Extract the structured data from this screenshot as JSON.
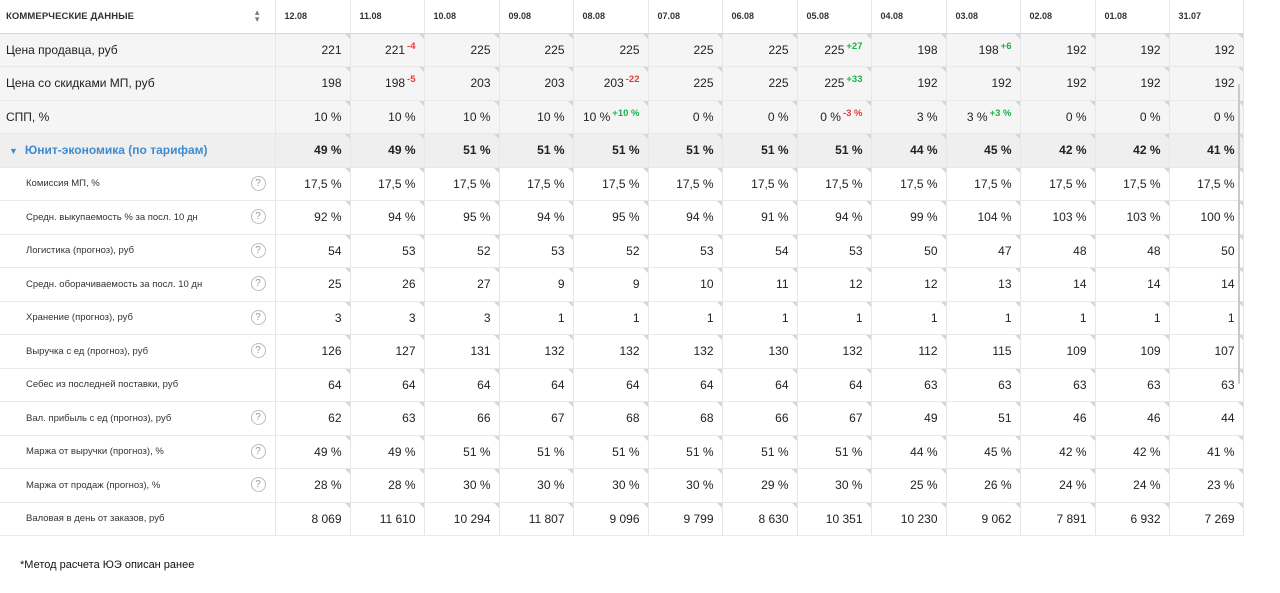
{
  "header": {
    "title": "КОММЕРЧЕСКИЕ ДАННЫЕ",
    "sort_icon": "sort-icon"
  },
  "dates": [
    "12.08",
    "11.08",
    "10.08",
    "09.08",
    "08.08",
    "07.08",
    "06.08",
    "05.08",
    "04.08",
    "03.08",
    "02.08",
    "01.08",
    "31.07"
  ],
  "rows": [
    {
      "type": "top",
      "label": "Цена продавца, руб",
      "help": false,
      "values": [
        {
          "v": "221"
        },
        {
          "v": "221",
          "d": "-4",
          "dir": "down"
        },
        {
          "v": "225"
        },
        {
          "v": "225"
        },
        {
          "v": "225"
        },
        {
          "v": "225"
        },
        {
          "v": "225"
        },
        {
          "v": "225",
          "d": "+27",
          "dir": "up"
        },
        {
          "v": "198"
        },
        {
          "v": "198",
          "d": "+6",
          "dir": "up"
        },
        {
          "v": "192"
        },
        {
          "v": "192"
        },
        {
          "v": "192"
        }
      ]
    },
    {
      "type": "top",
      "label": "Цена со скидками МП, руб",
      "help": false,
      "values": [
        {
          "v": "198"
        },
        {
          "v": "198",
          "d": "-5",
          "dir": "down"
        },
        {
          "v": "203"
        },
        {
          "v": "203"
        },
        {
          "v": "203",
          "d": "-22",
          "dir": "down"
        },
        {
          "v": "225"
        },
        {
          "v": "225"
        },
        {
          "v": "225",
          "d": "+33",
          "dir": "up"
        },
        {
          "v": "192"
        },
        {
          "v": "192"
        },
        {
          "v": "192"
        },
        {
          "v": "192"
        },
        {
          "v": "192"
        }
      ]
    },
    {
      "type": "top",
      "label": "СПП, %",
      "help": false,
      "values": [
        {
          "v": "10 %"
        },
        {
          "v": "10 %"
        },
        {
          "v": "10 %"
        },
        {
          "v": "10 %"
        },
        {
          "v": "10 %",
          "d": "+10 %",
          "dir": "up"
        },
        {
          "v": "0 %"
        },
        {
          "v": "0 %"
        },
        {
          "v": "0 %",
          "d": "-3 %",
          "dir": "down"
        },
        {
          "v": "3 %"
        },
        {
          "v": "3 %",
          "d": "+3 %",
          "dir": "up"
        },
        {
          "v": "0 %"
        },
        {
          "v": "0 %"
        },
        {
          "v": "0 %"
        }
      ]
    },
    {
      "type": "grp",
      "label": "Юнит-экономика (по тарифам)",
      "help": false,
      "values": [
        {
          "v": "49 %"
        },
        {
          "v": "49 %"
        },
        {
          "v": "51 %"
        },
        {
          "v": "51 %"
        },
        {
          "v": "51 %"
        },
        {
          "v": "51 %"
        },
        {
          "v": "51 %"
        },
        {
          "v": "51 %"
        },
        {
          "v": "44 %"
        },
        {
          "v": "45 %"
        },
        {
          "v": "42 %"
        },
        {
          "v": "42 %"
        },
        {
          "v": "41 %"
        }
      ]
    },
    {
      "type": "sub",
      "label": "Комиссия МП, %",
      "help": true,
      "values": [
        {
          "v": "17,5 %"
        },
        {
          "v": "17,5 %"
        },
        {
          "v": "17,5 %"
        },
        {
          "v": "17,5 %"
        },
        {
          "v": "17,5 %"
        },
        {
          "v": "17,5 %"
        },
        {
          "v": "17,5 %"
        },
        {
          "v": "17,5 %"
        },
        {
          "v": "17,5 %"
        },
        {
          "v": "17,5 %"
        },
        {
          "v": "17,5 %"
        },
        {
          "v": "17,5 %"
        },
        {
          "v": "17,5 %"
        }
      ]
    },
    {
      "type": "sub",
      "label": "Средн. выкупаемость % за посл. 10 дн",
      "help": true,
      "values": [
        {
          "v": "92 %"
        },
        {
          "v": "94 %"
        },
        {
          "v": "95 %"
        },
        {
          "v": "94 %"
        },
        {
          "v": "95 %"
        },
        {
          "v": "94 %"
        },
        {
          "v": "91 %"
        },
        {
          "v": "94 %"
        },
        {
          "v": "99 %"
        },
        {
          "v": "104 %"
        },
        {
          "v": "103 %"
        },
        {
          "v": "103 %"
        },
        {
          "v": "100 %"
        }
      ]
    },
    {
      "type": "sub",
      "label": "Логистика (прогноз), руб",
      "help": true,
      "values": [
        {
          "v": "54"
        },
        {
          "v": "53"
        },
        {
          "v": "52"
        },
        {
          "v": "53"
        },
        {
          "v": "52"
        },
        {
          "v": "53"
        },
        {
          "v": "54"
        },
        {
          "v": "53"
        },
        {
          "v": "50"
        },
        {
          "v": "47"
        },
        {
          "v": "48"
        },
        {
          "v": "48"
        },
        {
          "v": "50"
        }
      ]
    },
    {
      "type": "sub",
      "label": "Средн. оборачиваемость за посл. 10 дн",
      "help": true,
      "values": [
        {
          "v": "25"
        },
        {
          "v": "26"
        },
        {
          "v": "27"
        },
        {
          "v": "9"
        },
        {
          "v": "9"
        },
        {
          "v": "10"
        },
        {
          "v": "11"
        },
        {
          "v": "12"
        },
        {
          "v": "12"
        },
        {
          "v": "13"
        },
        {
          "v": "14"
        },
        {
          "v": "14"
        },
        {
          "v": "14"
        }
      ]
    },
    {
      "type": "sub",
      "label": "Хранение (прогноз), руб",
      "help": true,
      "values": [
        {
          "v": "3"
        },
        {
          "v": "3"
        },
        {
          "v": "3"
        },
        {
          "v": "1"
        },
        {
          "v": "1"
        },
        {
          "v": "1"
        },
        {
          "v": "1"
        },
        {
          "v": "1"
        },
        {
          "v": "1"
        },
        {
          "v": "1"
        },
        {
          "v": "1"
        },
        {
          "v": "1"
        },
        {
          "v": "1"
        }
      ]
    },
    {
      "type": "sub",
      "label": "Выручка с ед (прогноз), руб",
      "help": true,
      "values": [
        {
          "v": "126"
        },
        {
          "v": "127"
        },
        {
          "v": "131"
        },
        {
          "v": "132"
        },
        {
          "v": "132"
        },
        {
          "v": "132"
        },
        {
          "v": "130"
        },
        {
          "v": "132"
        },
        {
          "v": "112"
        },
        {
          "v": "115"
        },
        {
          "v": "109"
        },
        {
          "v": "109"
        },
        {
          "v": "107"
        }
      ]
    },
    {
      "type": "sub",
      "label": "Себес из последней поставки, руб",
      "help": false,
      "values": [
        {
          "v": "64"
        },
        {
          "v": "64"
        },
        {
          "v": "64"
        },
        {
          "v": "64"
        },
        {
          "v": "64"
        },
        {
          "v": "64"
        },
        {
          "v": "64"
        },
        {
          "v": "64"
        },
        {
          "v": "63"
        },
        {
          "v": "63"
        },
        {
          "v": "63"
        },
        {
          "v": "63"
        },
        {
          "v": "63"
        }
      ]
    },
    {
      "type": "sub",
      "label": "Вал. прибыль с ед (прогноз), руб",
      "help": true,
      "values": [
        {
          "v": "62"
        },
        {
          "v": "63"
        },
        {
          "v": "66"
        },
        {
          "v": "67"
        },
        {
          "v": "68"
        },
        {
          "v": "68"
        },
        {
          "v": "66"
        },
        {
          "v": "67"
        },
        {
          "v": "49"
        },
        {
          "v": "51"
        },
        {
          "v": "46"
        },
        {
          "v": "46"
        },
        {
          "v": "44"
        }
      ]
    },
    {
      "type": "sub",
      "label": "Маржа от выручки (прогноз), %",
      "help": true,
      "values": [
        {
          "v": "49 %"
        },
        {
          "v": "49 %"
        },
        {
          "v": "51 %"
        },
        {
          "v": "51 %"
        },
        {
          "v": "51 %"
        },
        {
          "v": "51 %"
        },
        {
          "v": "51 %"
        },
        {
          "v": "51 %"
        },
        {
          "v": "44 %"
        },
        {
          "v": "45 %"
        },
        {
          "v": "42 %"
        },
        {
          "v": "42 %"
        },
        {
          "v": "41 %"
        }
      ]
    },
    {
      "type": "sub",
      "label": "Маржа от продаж (прогноз), %",
      "help": true,
      "values": [
        {
          "v": "28 %"
        },
        {
          "v": "28 %"
        },
        {
          "v": "30 %"
        },
        {
          "v": "30 %"
        },
        {
          "v": "30 %"
        },
        {
          "v": "30 %"
        },
        {
          "v": "29 %"
        },
        {
          "v": "30 %"
        },
        {
          "v": "25 %"
        },
        {
          "v": "26 %"
        },
        {
          "v": "24 %"
        },
        {
          "v": "24 %"
        },
        {
          "v": "23 %"
        }
      ]
    },
    {
      "type": "sub",
      "label": "Валовая в день от заказов, руб",
      "help": false,
      "values": [
        {
          "v": "8 069"
        },
        {
          "v": "11 610"
        },
        {
          "v": "10 294"
        },
        {
          "v": "11 807"
        },
        {
          "v": "9 096"
        },
        {
          "v": "9 799"
        },
        {
          "v": "8 630"
        },
        {
          "v": "10 351"
        },
        {
          "v": "10 230"
        },
        {
          "v": "9 062"
        },
        {
          "v": "7 891"
        },
        {
          "v": "6 932"
        },
        {
          "v": "7 269"
        }
      ]
    }
  ],
  "help_glyph": "?",
  "footnote": "*Метод расчета ЮЭ описан ранее",
  "colors": {
    "accent": "#3d8ccf",
    "up": "#19b14a",
    "down": "#e53935",
    "top_bg": "#f5f5f5",
    "group_bg": "#efefef"
  }
}
